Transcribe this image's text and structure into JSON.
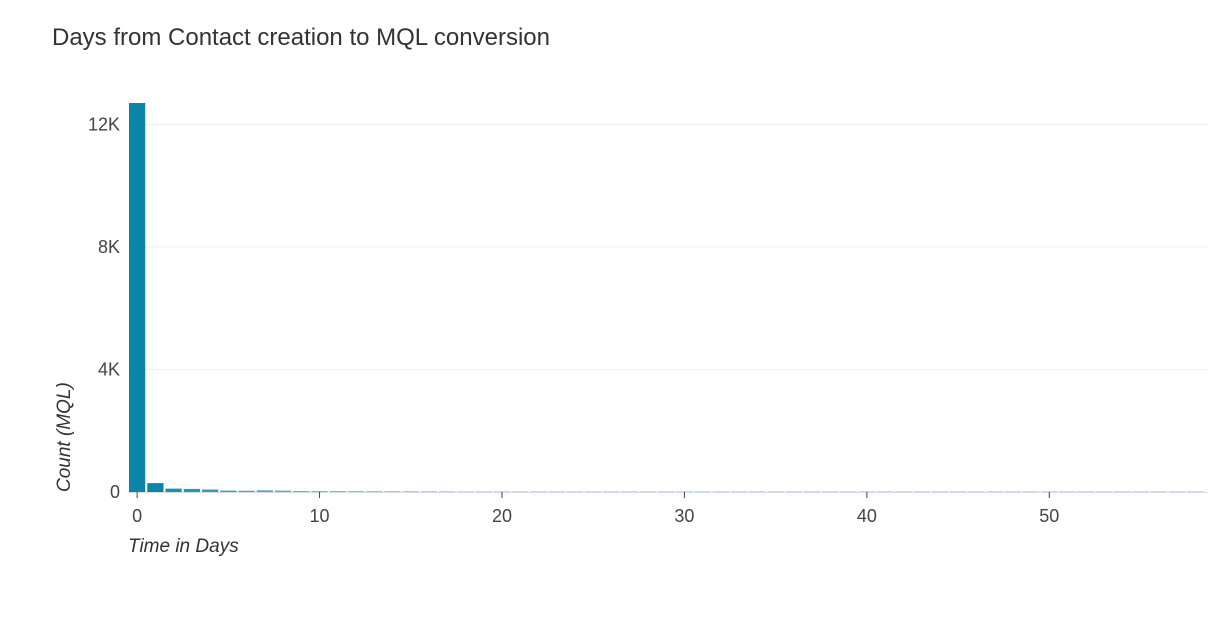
{
  "chart_data": {
    "type": "bar",
    "title": "Days from Contact creation to MQL conversion",
    "xlabel": "Time in Days",
    "ylabel": "Count (MQL)",
    "x": [
      0,
      1,
      2,
      3,
      4,
      5,
      6,
      7,
      8,
      9,
      10,
      11,
      12,
      13,
      14,
      15,
      16,
      17,
      18,
      19,
      20,
      21,
      22,
      23,
      24,
      25,
      26,
      27,
      28,
      29,
      30,
      31,
      32,
      33,
      34,
      35,
      36,
      37,
      38,
      39,
      40,
      41,
      42,
      43,
      44,
      45,
      46,
      47,
      48,
      49,
      50,
      51,
      52,
      53,
      54,
      55,
      56,
      57,
      58
    ],
    "values": [
      12700,
      290,
      110,
      100,
      80,
      45,
      40,
      55,
      45,
      30,
      25,
      30,
      30,
      25,
      20,
      20,
      18,
      16,
      15,
      15,
      20,
      25,
      25,
      22,
      15,
      12,
      10,
      15,
      15,
      15,
      10,
      8,
      8,
      7,
      7,
      6,
      5,
      5,
      5,
      5,
      8,
      8,
      7,
      20,
      8,
      5,
      4,
      4,
      4,
      4,
      4,
      4,
      4,
      4,
      4,
      4,
      4,
      4,
      4
    ],
    "xlim": [
      -0.5,
      58.7
    ],
    "ylim": [
      0,
      12700
    ],
    "xticks": [
      0,
      10,
      20,
      30,
      40,
      50
    ],
    "xtick_labels": [
      "0",
      "10",
      "20",
      "30",
      "40",
      "50"
    ],
    "yticks": [
      0,
      4000,
      8000,
      12000
    ],
    "ytick_labels": [
      "0",
      "4K",
      "8K",
      "12K"
    ],
    "grid": true,
    "bar_color": "#0b85a8",
    "colorscale": [
      "#0b85a8",
      "#bfe0ea"
    ]
  }
}
